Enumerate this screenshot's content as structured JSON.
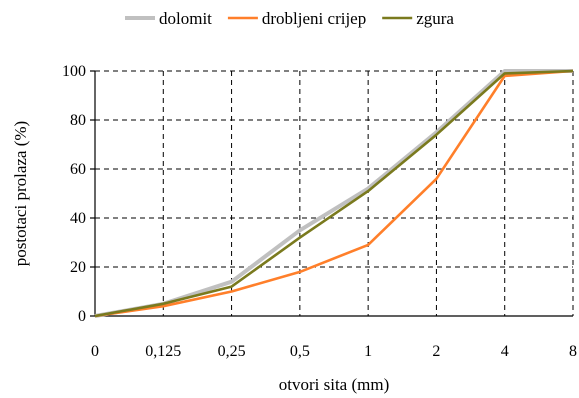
{
  "chart_data": {
    "type": "line",
    "title": "",
    "xlabel": "otvori sita (mm)",
    "ylabel": "postotaci prolaza (%)",
    "x": [
      "0",
      "0,125",
      "0,25",
      "0,5",
      "1",
      "2",
      "4",
      "8"
    ],
    "ylim": [
      0,
      100
    ],
    "yticks": [
      0,
      20,
      40,
      60,
      80,
      100
    ],
    "grid": true,
    "legend_position": "top",
    "series": [
      {
        "name": "dolomit",
        "color": "#c0c0c0",
        "values": [
          0,
          5,
          14,
          35,
          52,
          75,
          100,
          100
        ]
      },
      {
        "name": "drobljeni crijep",
        "color": "#ff7f2a",
        "values": [
          0,
          4,
          10,
          18,
          29,
          56,
          98,
          100
        ]
      },
      {
        "name": "zgura",
        "color": "#7a7a1e",
        "values": [
          0,
          5,
          12,
          32,
          51,
          74,
          99,
          100
        ]
      }
    ]
  }
}
